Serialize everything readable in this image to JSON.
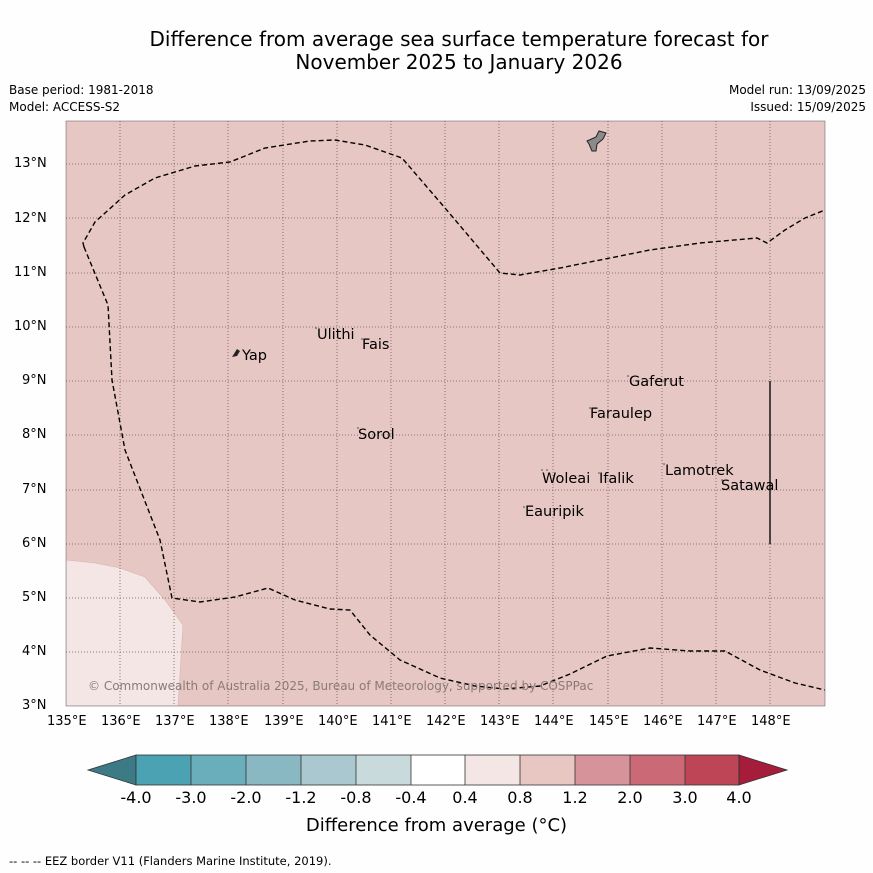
{
  "title_line1": "Difference from average sea surface temperature forecast for",
  "title_line2": "November 2025 to January 2026",
  "base_period": "Base period: 1981-2018",
  "model": "Model: ACCESS-S2",
  "model_run": "Model run: 13/09/2025",
  "issued": "Issued: 15/09/2025",
  "copyright": "© Commonwealth of Australia 2025, Bureau of Meteorology, supported by COSPPac",
  "lon_ticks": [
    "135°E",
    "136°E",
    "137°E",
    "138°E",
    "139°E",
    "140°E",
    "141°E",
    "142°E",
    "143°E",
    "144°E",
    "145°E",
    "146°E",
    "147°E",
    "148°E"
  ],
  "lat_ticks": [
    "3°N",
    "4°N",
    "5°N",
    "6°N",
    "7°N",
    "8°N",
    "9°N",
    "10°N",
    "11°N",
    "12°N",
    "13°N"
  ],
  "places": {
    "yap": "Yap",
    "ulithi": "Ulithi",
    "fais": "Fais",
    "sorol": "Sorol",
    "gaferut": "Gaferut",
    "faraulep": "Faraulep",
    "lamotrek": "Lamotrek",
    "satawal": "Satawal",
    "woleai": "Woleai",
    "ifalik": "Ifalik",
    "eauripik": "Eauripik"
  },
  "colorbar": {
    "labels": [
      "-4.0",
      "-3.0",
      "-2.0",
      "-1.2",
      "-0.8",
      "-0.4",
      "0.4",
      "0.8",
      "1.2",
      "2.0",
      "3.0",
      "4.0"
    ],
    "colors": [
      "#3c7a86",
      "#4aa2b2",
      "#6aaebb",
      "#89b8c3",
      "#a9c8cf",
      "#c9dadd",
      "#ffffff",
      "#f4e6e5",
      "#e8c6c2",
      "#d7939a",
      "#cb6a76",
      "#be4555",
      "#a51d3b"
    ],
    "title": "Difference from average (°C)"
  },
  "map_colors": {
    "main": "#e7c7c3",
    "light": "#f4e6e5"
  },
  "footer": "--  --  -- EEZ border V11 (Flanders Marine Institute, 2019)."
}
